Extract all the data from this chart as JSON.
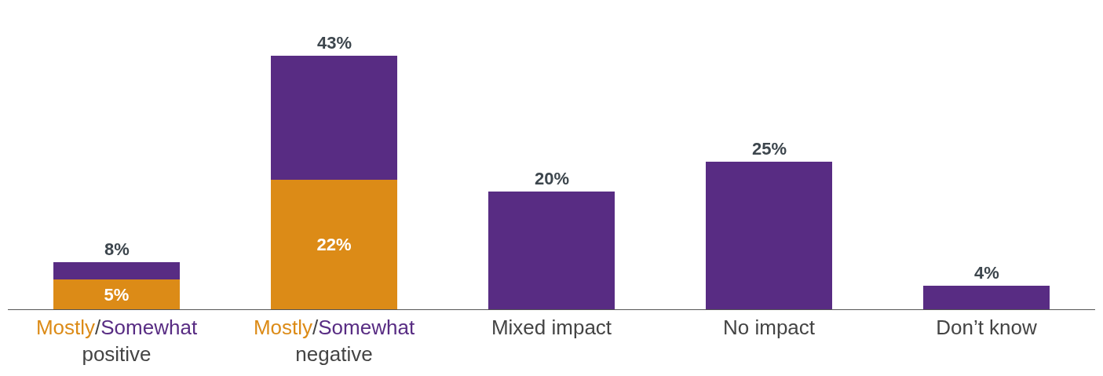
{
  "chart_data": {
    "type": "bar",
    "stacked": true,
    "categories": [
      "Mostly/Somewhat\npositive",
      "Mostly/Somewhat\nnegative",
      "Mixed impact",
      "No impact",
      "Don’t know"
    ],
    "series": [
      {
        "color": "#dc8b17",
        "values": [
          5,
          22,
          null,
          null,
          null
        ],
        "value_labels": [
          "5%",
          "22%",
          null,
          null,
          null
        ]
      },
      {
        "color": "#582c83",
        "values": [
          3,
          21,
          20,
          25,
          4
        ]
      }
    ],
    "totals": [
      "8%",
      "43%",
      "20%",
      "25%",
      "4%"
    ]
  }
}
